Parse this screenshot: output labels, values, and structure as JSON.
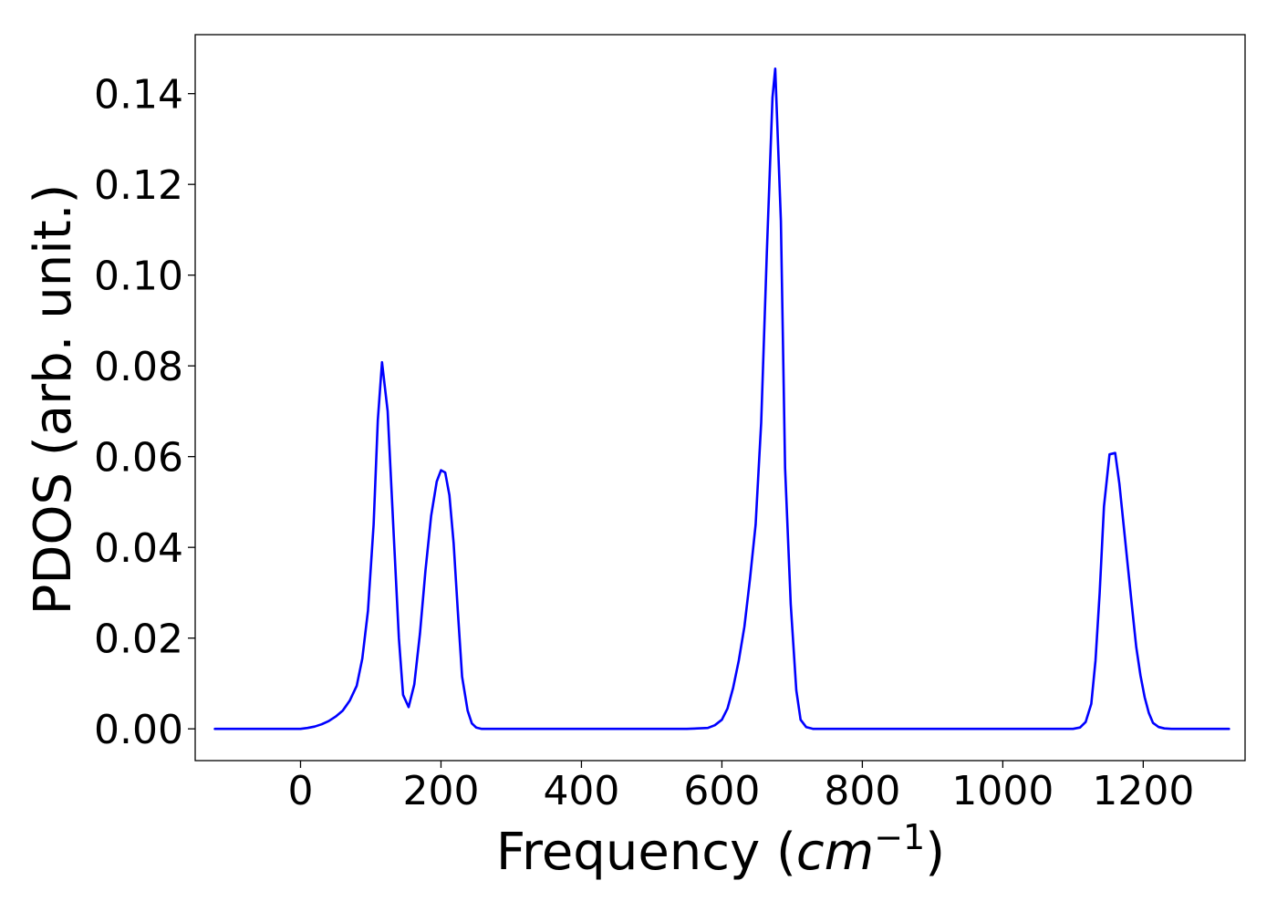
{
  "chart_data": {
    "type": "line",
    "title": "",
    "xlabel_main": "Frequency (",
    "xlabel_math": "cm",
    "xlabel_sup": "−1",
    "xlabel_tail": ")",
    "ylabel": "PDOS (arb. unit.)",
    "xlim": [
      -150,
      1345
    ],
    "ylim": [
      -0.007,
      0.153
    ],
    "x_ticks": [
      0,
      200,
      400,
      600,
      800,
      1000,
      1200
    ],
    "x_tick_labels": [
      "0",
      "200",
      "400",
      "600",
      "800",
      "1000",
      "1200"
    ],
    "y_ticks": [
      0.0,
      0.02,
      0.04,
      0.06,
      0.08,
      0.1,
      0.12,
      0.14
    ],
    "y_tick_labels": [
      "0.00",
      "0.02",
      "0.04",
      "0.06",
      "0.08",
      "0.10",
      "0.12",
      "0.14"
    ],
    "grid": false,
    "legend": "none",
    "series": [
      {
        "color": "#0000ff",
        "x": [
          -122,
          -100,
          -80,
          -60,
          -40,
          -20,
          0,
          10,
          20,
          30,
          40,
          50,
          60,
          70,
          80,
          88,
          96,
          104,
          110,
          116,
          124,
          132,
          140,
          146,
          154,
          162,
          170,
          178,
          186,
          194,
          200,
          206,
          212,
          218,
          224,
          230,
          238,
          244,
          250,
          258,
          266,
          280,
          300,
          350,
          400,
          450,
          500,
          550,
          580,
          590,
          600,
          608,
          616,
          624,
          632,
          640,
          648,
          656,
          664,
          672,
          676,
          684,
          690,
          698,
          706,
          712,
          720,
          730,
          740,
          800,
          900,
          1000,
          1100,
          1110,
          1118,
          1126,
          1132,
          1138,
          1144,
          1152,
          1160,
          1166,
          1172,
          1178,
          1184,
          1190,
          1196,
          1202,
          1208,
          1214,
          1222,
          1230,
          1240,
          1260,
          1300,
          1322
        ],
        "y": [
          0.0,
          0.0,
          0.0,
          0.0,
          0.0,
          0.0,
          0.0,
          0.0002,
          0.0005,
          0.001,
          0.0017,
          0.0027,
          0.004,
          0.0062,
          0.0095,
          0.0155,
          0.026,
          0.045,
          0.068,
          0.0808,
          0.07,
          0.045,
          0.02,
          0.0075,
          0.0048,
          0.0098,
          0.021,
          0.035,
          0.047,
          0.0545,
          0.057,
          0.0565,
          0.0515,
          0.041,
          0.026,
          0.0115,
          0.004,
          0.0012,
          0.0003,
          0.0,
          0.0,
          0.0,
          0.0,
          0.0,
          0.0,
          0.0,
          0.0,
          0.0,
          0.0002,
          0.0008,
          0.002,
          0.0045,
          0.009,
          0.015,
          0.0225,
          0.033,
          0.045,
          0.0675,
          0.105,
          0.1392,
          0.1455,
          0.112,
          0.0575,
          0.0275,
          0.0085,
          0.002,
          0.0004,
          0.0,
          0.0,
          0.0,
          0.0,
          0.0,
          0.0,
          0.0003,
          0.0015,
          0.0055,
          0.015,
          0.03,
          0.049,
          0.0605,
          0.0608,
          0.054,
          0.045,
          0.036,
          0.027,
          0.018,
          0.0118,
          0.007,
          0.0035,
          0.0013,
          0.0004,
          0.0001,
          0.0,
          0.0,
          0.0,
          0.0
        ]
      }
    ]
  }
}
